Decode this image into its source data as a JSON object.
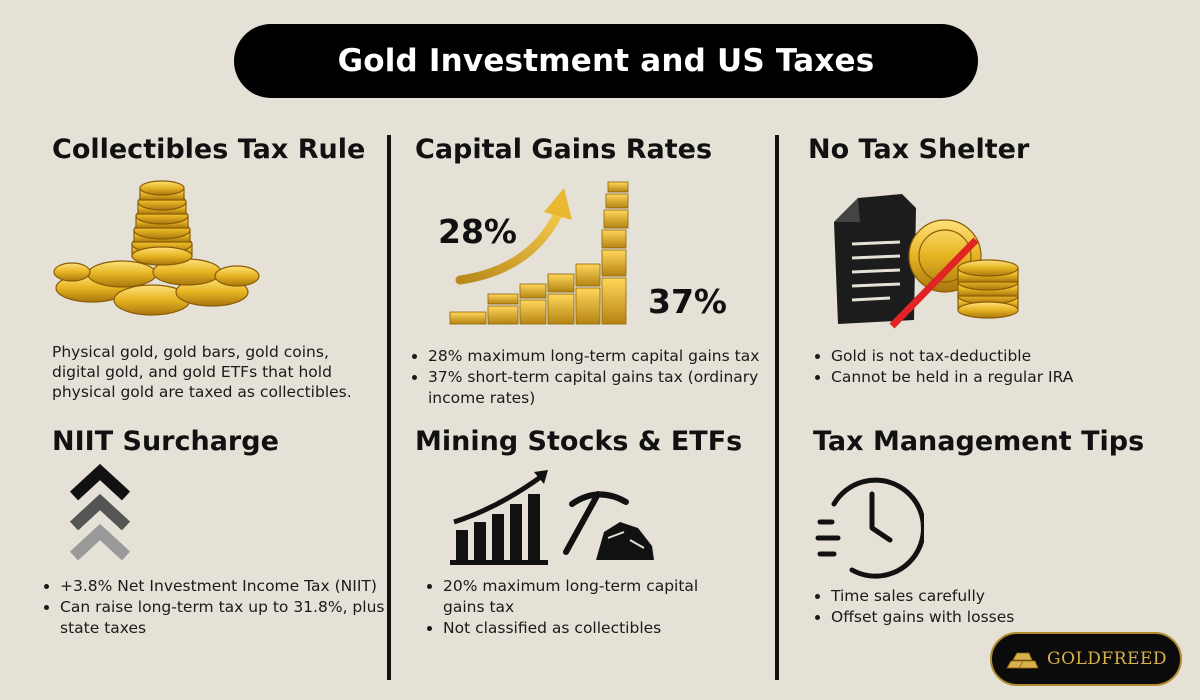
{
  "title": "Gold Investment and US Taxes",
  "sections": {
    "collectibles": {
      "title": "Collectibles Tax Rule",
      "text": "Physical gold, gold bars, gold coins, digital gold, and gold ETFs that hold physical gold are taxed as collectibles."
    },
    "capital_gains": {
      "title": "Capital Gains Rates",
      "label_28": "28%",
      "label_37": "37%",
      "bullets": [
        "28% maximum long-term capital gains tax",
        "37% short-term capital gains tax (ordinary income rates)"
      ]
    },
    "no_shelter": {
      "title": "No Tax Shelter",
      "bullets": [
        "Gold is not tax-deductible",
        "Cannot be held in a regular IRA"
      ]
    },
    "niit": {
      "title": "NIIT Surcharge",
      "bullets": [
        "+3.8% Net Investment Income Tax (NIIT)",
        "Can raise long-term tax up to 31.8%, plus state taxes"
      ]
    },
    "mining": {
      "title": "Mining Stocks & ETFs",
      "bullets": [
        "20% maximum long-term capital gains tax",
        "Not classified as collectibles"
      ]
    },
    "tips": {
      "title": "Tax Management Tips",
      "bullets": [
        "Time sales carefully",
        "Offset gains with losses"
      ]
    }
  },
  "logo": {
    "text": "GOLDFREED"
  },
  "icons": {
    "collectibles": "gold-coin-pile-icon",
    "capital_gains": "gold-bar-growth-icon",
    "no_shelter": "document-coins-crossed-icon",
    "niit": "chevrons-up-icon",
    "mining": "rising-bar-chart-pickaxe-icon",
    "tips": "fast-clock-icon",
    "logo": "gold-bars-icon"
  },
  "colors": {
    "background": "#e6e1d6",
    "title_bg": "#000000",
    "gold": "#e6b422",
    "cross": "#e02424"
  }
}
